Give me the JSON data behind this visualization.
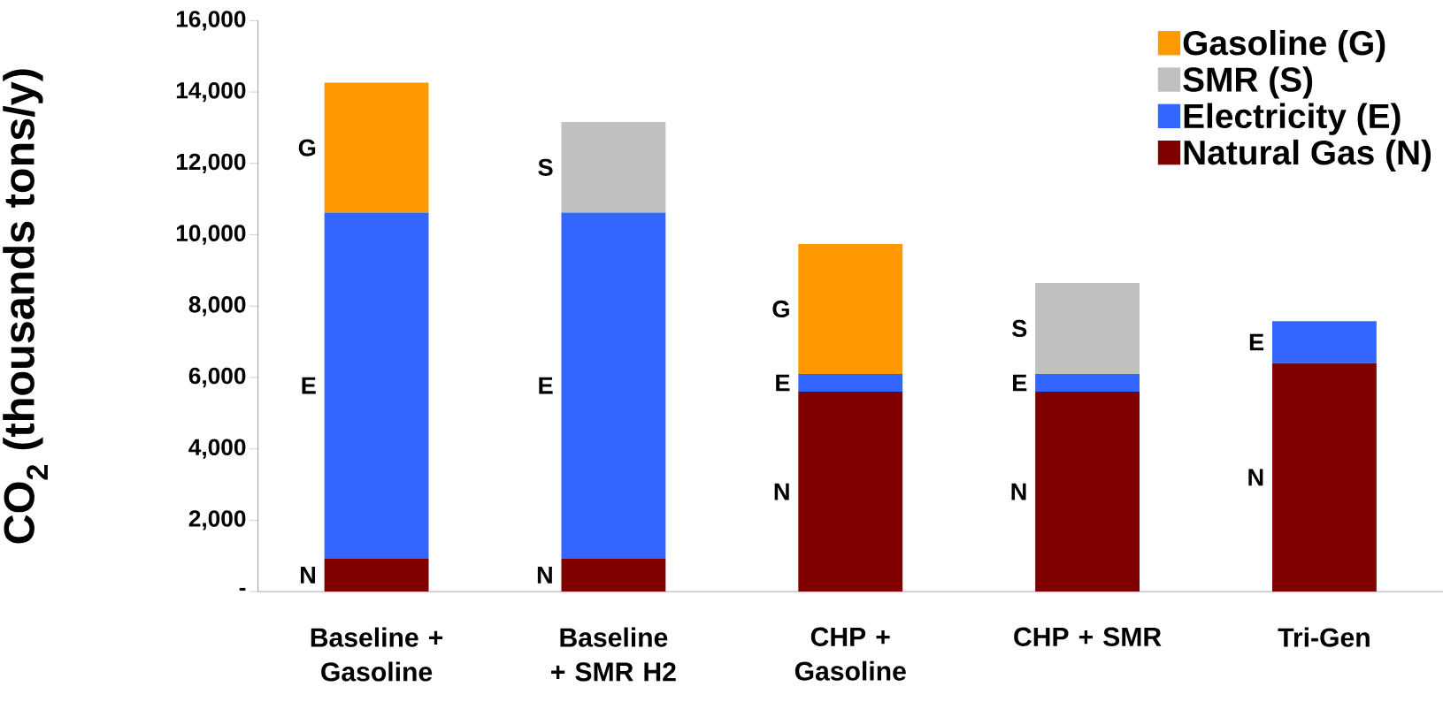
{
  "chart_data": {
    "type": "bar",
    "stacked": true,
    "ylabel": "CO$_{2}$ (thousands tons/y)",
    "categories": [
      "Baseline + Gasoline",
      "Baseline + SMR H2",
      "CHP + Gasoline",
      "CHP + SMR",
      "Tri-Gen"
    ],
    "series": [
      {
        "name": "Natural Gas (N)",
        "color": "#800000",
        "values": [
          930,
          930,
          5600,
          5600,
          6400
        ],
        "value_labels": [
          "N",
          "N",
          "N",
          "N",
          "N"
        ]
      },
      {
        "name": "Electricity (E)",
        "color": "#3366ff",
        "values": [
          9690,
          9690,
          500,
          500,
          1180
        ],
        "value_labels": [
          "E",
          "E",
          "E",
          "E",
          "E"
        ]
      },
      {
        "name": "SMR (S)",
        "color": "#c0c0c0",
        "values": [
          0,
          2540,
          0,
          2550,
          0
        ],
        "value_labels": [
          null,
          "S",
          null,
          "S",
          null
        ]
      },
      {
        "name": "Gasoline (G)",
        "color": "#ff9900",
        "values": [
          3640,
          0,
          3640,
          0,
          0
        ],
        "value_labels": [
          "G",
          null,
          "G",
          null,
          null
        ]
      }
    ],
    "ylim": [
      0,
      16000
    ],
    "yticks": [
      {
        "value": 0,
        "label": "-"
      },
      {
        "value": 2000,
        "label": "2,000"
      },
      {
        "value": 4000,
        "label": "4,000"
      },
      {
        "value": 6000,
        "label": "6,000"
      },
      {
        "value": 8000,
        "label": "8,000"
      },
      {
        "value": 10000,
        "label": "10,000"
      },
      {
        "value": 12000,
        "label": "12,000"
      },
      {
        "value": 14000,
        "label": "14,000"
      },
      {
        "value": 16000,
        "label": "16,000"
      }
    ],
    "legend": "top right"
  }
}
